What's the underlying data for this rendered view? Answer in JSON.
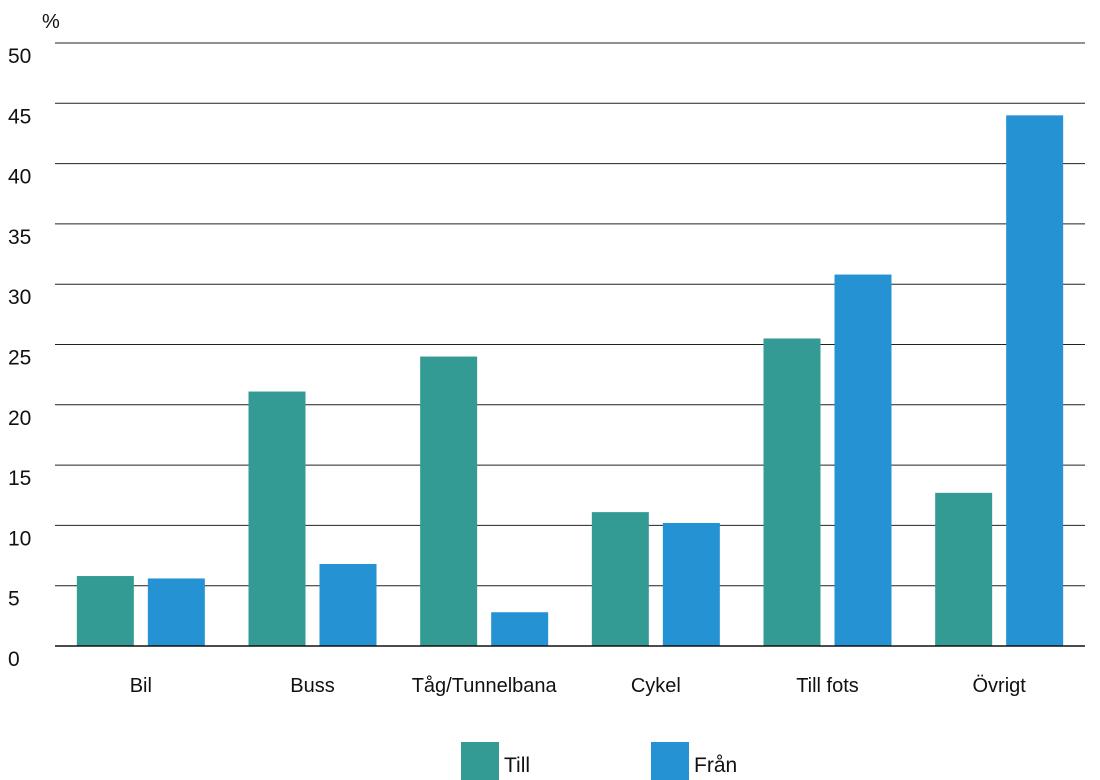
{
  "chart_data": {
    "type": "bar",
    "title": "",
    "xlabel": "",
    "ylabel": "%",
    "ylim": [
      0,
      50
    ],
    "yticks": [
      0,
      5,
      10,
      15,
      20,
      25,
      30,
      35,
      40,
      45,
      50
    ],
    "grid": true,
    "legend_position": "bottom-center",
    "categories": [
      "Bil",
      "Buss",
      "Tåg/Tunnelbana",
      "Cykel",
      "Till fots",
      "Övrigt"
    ],
    "series": [
      {
        "name": "Till",
        "color": "#339b93",
        "values": [
          5.8,
          21.1,
          24.0,
          11.1,
          25.5,
          12.7
        ]
      },
      {
        "name": "Från",
        "color": "#2592d3",
        "values": [
          5.6,
          6.8,
          2.8,
          10.2,
          30.8,
          44.0
        ]
      }
    ]
  }
}
